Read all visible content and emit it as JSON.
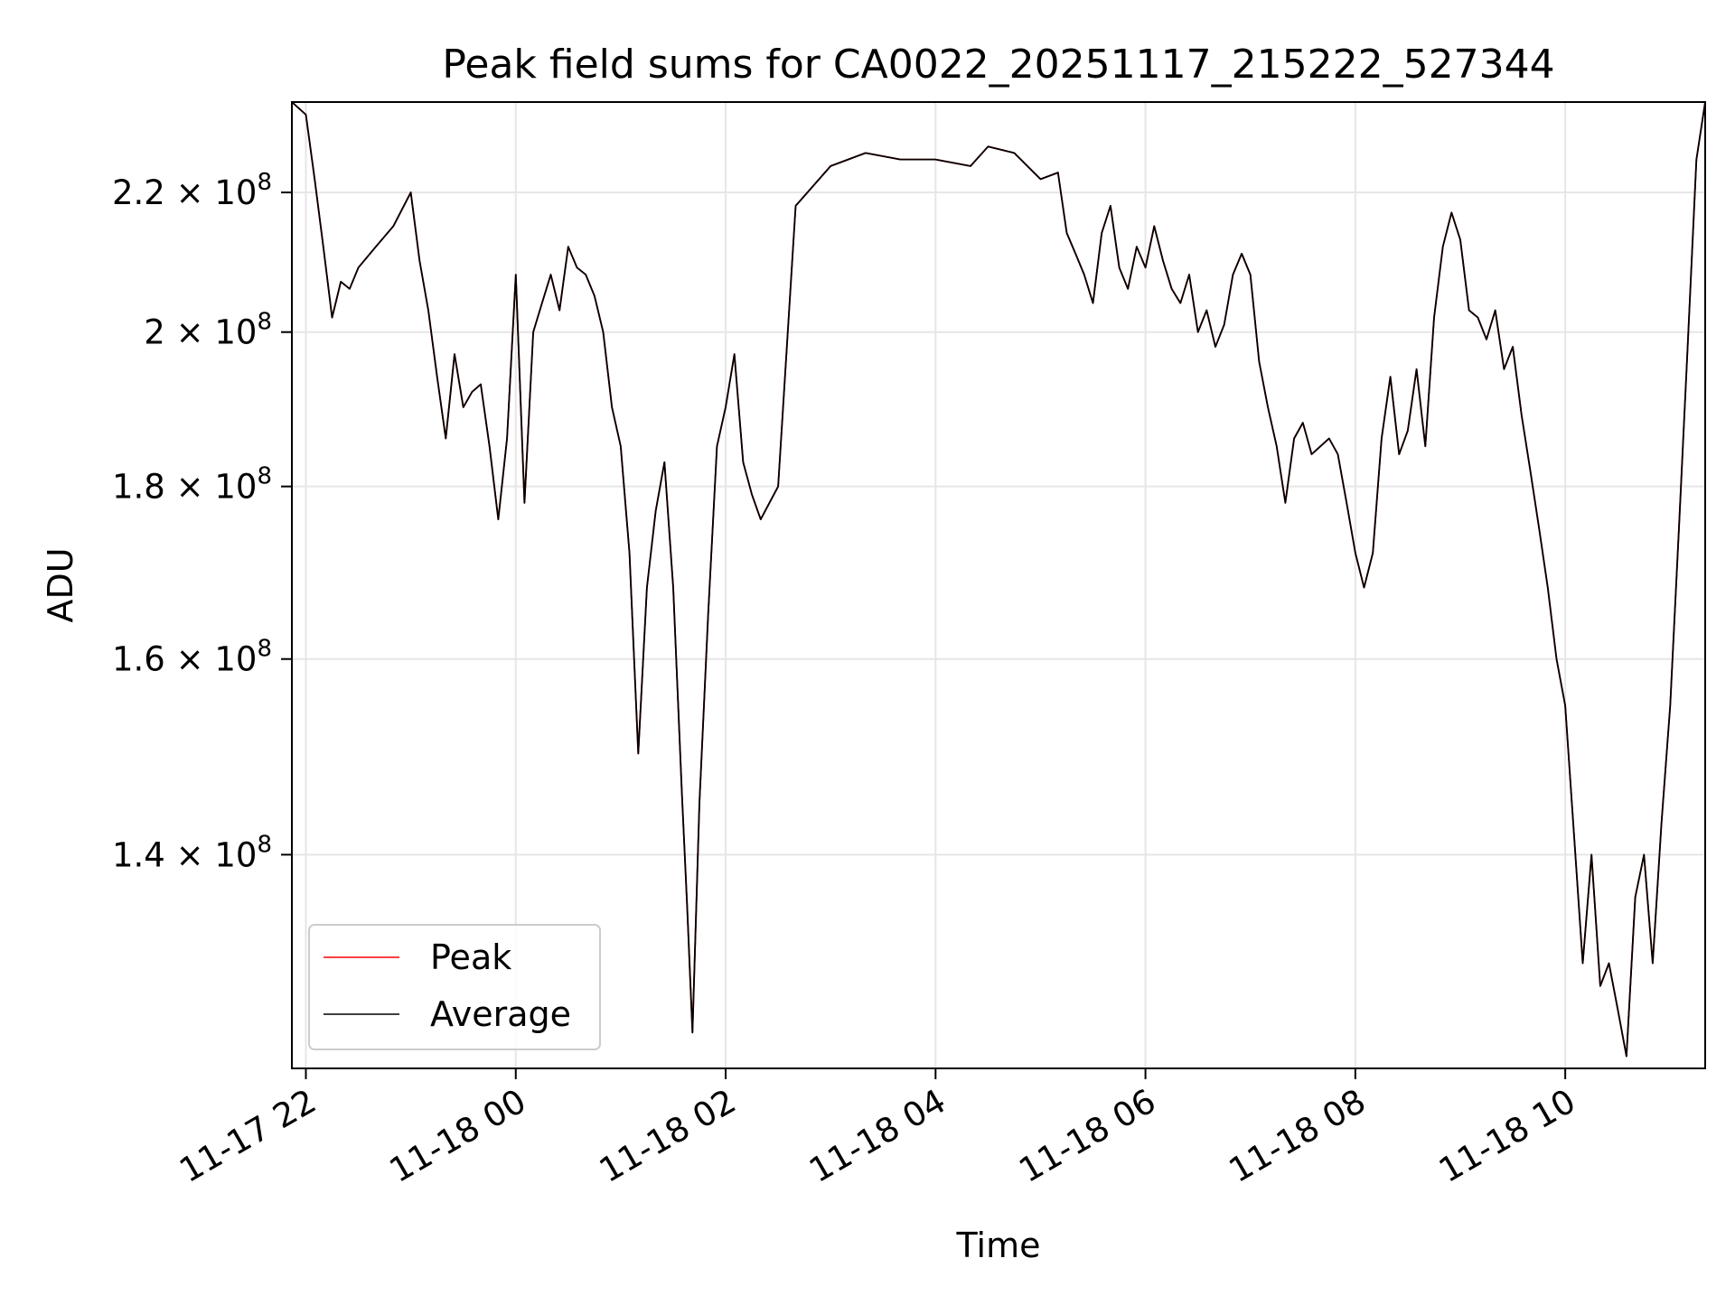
{
  "chart_data": {
    "type": "line",
    "title": "Peak field sums for CA0022_20251117_215222_527344",
    "xlabel": "Time",
    "ylabel": "ADU",
    "yscale": "log",
    "grid": true,
    "legend_position": "lower-left",
    "xlim": [
      "2025-11-17 21:52",
      "2025-11-18 11:20"
    ],
    "ylim": [
      121000000,
      234000000
    ],
    "x_ticks": [
      {
        "value": "2025-11-17 22:00",
        "label": "11-17 22"
      },
      {
        "value": "2025-11-18 00:00",
        "label": "11-18 00"
      },
      {
        "value": "2025-11-18 02:00",
        "label": "11-18 02"
      },
      {
        "value": "2025-11-18 04:00",
        "label": "11-18 04"
      },
      {
        "value": "2025-11-18 06:00",
        "label": "11-18 06"
      },
      {
        "value": "2025-11-18 08:00",
        "label": "11-18 08"
      },
      {
        "value": "2025-11-18 10:00",
        "label": "11-18 10"
      }
    ],
    "y_ticks": [
      {
        "value": 140000000,
        "mantissa": "1.4"
      },
      {
        "value": 160000000,
        "mantissa": "1.6"
      },
      {
        "value": 180000000,
        "mantissa": "1.8"
      },
      {
        "value": 200000000,
        "mantissa": "2"
      },
      {
        "value": 220000000,
        "mantissa": "2.2"
      }
    ],
    "tick_multiplier": "× 10",
    "tick_exponent": "8",
    "series": [
      {
        "name": "Peak",
        "color": "#ff0000"
      },
      {
        "name": "Average",
        "color": "#000000"
      }
    ],
    "time": [
      "2025-11-17 21:52",
      "2025-11-17 22:00",
      "2025-11-17 22:05",
      "2025-11-17 22:10",
      "2025-11-17 22:15",
      "2025-11-17 22:20",
      "2025-11-17 22:25",
      "2025-11-17 22:30",
      "2025-11-17 22:40",
      "2025-11-17 22:50",
      "2025-11-17 23:00",
      "2025-11-17 23:05",
      "2025-11-17 23:10",
      "2025-11-17 23:15",
      "2025-11-17 23:20",
      "2025-11-17 23:25",
      "2025-11-17 23:30",
      "2025-11-17 23:35",
      "2025-11-17 23:40",
      "2025-11-17 23:45",
      "2025-11-17 23:50",
      "2025-11-17 23:55",
      "2025-11-18 00:00",
      "2025-11-18 00:05",
      "2025-11-18 00:10",
      "2025-11-18 00:15",
      "2025-11-18 00:20",
      "2025-11-18 00:25",
      "2025-11-18 00:30",
      "2025-11-18 00:35",
      "2025-11-18 00:40",
      "2025-11-18 00:45",
      "2025-11-18 00:50",
      "2025-11-18 00:55",
      "2025-11-18 01:00",
      "2025-11-18 01:05",
      "2025-11-18 01:10",
      "2025-11-18 01:15",
      "2025-11-18 01:20",
      "2025-11-18 01:25",
      "2025-11-18 01:30",
      "2025-11-18 01:35",
      "2025-11-18 01:38",
      "2025-11-18 01:41",
      "2025-11-18 01:45",
      "2025-11-18 01:50",
      "2025-11-18 01:55",
      "2025-11-18 02:00",
      "2025-11-18 02:05",
      "2025-11-18 02:10",
      "2025-11-18 02:15",
      "2025-11-18 02:20",
      "2025-11-18 02:30",
      "2025-11-18 02:40",
      "2025-11-18 03:00",
      "2025-11-18 03:20",
      "2025-11-18 03:40",
      "2025-11-18 04:00",
      "2025-11-18 04:20",
      "2025-11-18 04:30",
      "2025-11-18 04:45",
      "2025-11-18 05:00",
      "2025-11-18 05:10",
      "2025-11-18 05:15",
      "2025-11-18 05:20",
      "2025-11-18 05:25",
      "2025-11-18 05:30",
      "2025-11-18 05:35",
      "2025-11-18 05:40",
      "2025-11-18 05:45",
      "2025-11-18 05:50",
      "2025-11-18 05:55",
      "2025-11-18 06:00",
      "2025-11-18 06:05",
      "2025-11-18 06:10",
      "2025-11-18 06:15",
      "2025-11-18 06:20",
      "2025-11-18 06:25",
      "2025-11-18 06:30",
      "2025-11-18 06:35",
      "2025-11-18 06:40",
      "2025-11-18 06:45",
      "2025-11-18 06:50",
      "2025-11-18 06:55",
      "2025-11-18 07:00",
      "2025-11-18 07:05",
      "2025-11-18 07:10",
      "2025-11-18 07:15",
      "2025-11-18 07:20",
      "2025-11-18 07:25",
      "2025-11-18 07:30",
      "2025-11-18 07:35",
      "2025-11-18 07:40",
      "2025-11-18 07:45",
      "2025-11-18 07:50",
      "2025-11-18 07:55",
      "2025-11-18 08:00",
      "2025-11-18 08:05",
      "2025-11-18 08:10",
      "2025-11-18 08:15",
      "2025-11-18 08:20",
      "2025-11-18 08:25",
      "2025-11-18 08:30",
      "2025-11-18 08:35",
      "2025-11-18 08:40",
      "2025-11-18 08:45",
      "2025-11-18 08:50",
      "2025-11-18 08:55",
      "2025-11-18 09:00",
      "2025-11-18 09:05",
      "2025-11-18 09:10",
      "2025-11-18 09:15",
      "2025-11-18 09:20",
      "2025-11-18 09:25",
      "2025-11-18 09:30",
      "2025-11-18 09:35",
      "2025-11-18 09:40",
      "2025-11-18 09:45",
      "2025-11-18 09:50",
      "2025-11-18 09:55",
      "2025-11-18 10:00",
      "2025-11-18 10:05",
      "2025-11-18 10:10",
      "2025-11-18 10:15",
      "2025-11-18 10:20",
      "2025-11-18 10:25",
      "2025-11-18 10:30",
      "2025-11-18 10:35",
      "2025-11-18 10:40",
      "2025-11-18 10:45",
      "2025-11-18 10:50",
      "2025-11-18 10:55",
      "2025-11-18 11:00",
      "2025-11-18 11:05",
      "2025-11-18 11:10",
      "2025-11-18 11:15",
      "2025-11-18 11:20"
    ],
    "average": [
      234000000,
      232000000,
      222000000,
      212000000,
      202000000,
      207000000,
      206000000,
      209000000,
      212000000,
      215000000,
      220000000,
      210000000,
      203000000,
      194000000,
      186000000,
      197000000,
      190000000,
      192000000,
      193000000,
      185000000,
      176000000,
      186000000,
      208000000,
      178000000,
      200000000,
      204000000,
      208000000,
      203000000,
      212000000,
      209000000,
      208000000,
      205000000,
      200000000,
      190000000,
      185000000,
      172000000,
      150000000,
      168000000,
      177000000,
      183000000,
      168000000,
      146000000,
      135000000,
      124000000,
      145000000,
      165000000,
      185000000,
      190000000,
      197000000,
      183000000,
      179000000,
      176000000,
      180000000,
      218000000,
      224000000,
      226000000,
      225000000,
      225000000,
      224000000,
      227000000,
      226000000,
      222000000,
      223000000,
      214000000,
      211000000,
      208000000,
      204000000,
      214000000,
      218000000,
      209000000,
      206000000,
      212000000,
      209000000,
      215000000,
      210000000,
      206000000,
      204000000,
      208000000,
      200000000,
      203000000,
      198000000,
      201000000,
      208000000,
      211000000,
      208000000,
      196000000,
      190000000,
      185000000,
      178000000,
      186000000,
      188000000,
      184000000,
      185000000,
      186000000,
      184000000,
      178000000,
      172000000,
      168000000,
      172000000,
      186000000,
      194000000,
      184000000,
      187000000,
      195000000,
      185000000,
      202000000,
      212000000,
      217000000,
      213000000,
      203000000,
      202000000,
      199000000,
      203000000,
      195000000,
      198000000,
      189000000,
      182000000,
      175000000,
      168000000,
      160000000,
      155000000,
      142000000,
      130000000,
      140000000,
      128000000,
      130000000,
      126000000,
      122000000,
      136000000,
      140000000,
      130000000,
      143000000,
      155000000,
      175000000,
      198000000,
      225000000,
      234000000
    ],
    "peak": [
      234000000,
      232000000,
      222000000,
      212000000,
      202000000,
      207000000,
      206000000,
      209000000,
      212000000,
      215000000,
      220000000,
      210000000,
      203000000,
      194000000,
      186000000,
      197000000,
      190000000,
      192000000,
      193000000,
      185000000,
      176000000,
      186000000,
      208000000,
      178000000,
      200000000,
      204000000,
      208000000,
      203000000,
      212000000,
      209000000,
      208000000,
      205000000,
      200000000,
      190000000,
      185000000,
      172000000,
      150000000,
      168000000,
      177000000,
      183000000,
      168000000,
      146000000,
      135000000,
      124000000,
      145000000,
      165000000,
      185000000,
      190000000,
      197000000,
      183000000,
      179000000,
      176000000,
      180000000,
      218000000,
      224000000,
      226000000,
      225000000,
      225000000,
      224000000,
      227000000,
      226000000,
      222000000,
      223000000,
      214000000,
      211000000,
      208000000,
      204000000,
      214000000,
      218000000,
      209000000,
      206000000,
      212000000,
      209000000,
      215000000,
      210000000,
      206000000,
      204000000,
      208000000,
      200000000,
      203000000,
      198000000,
      201000000,
      208000000,
      211000000,
      208000000,
      196000000,
      190000000,
      185000000,
      178000000,
      186000000,
      188000000,
      184000000,
      185000000,
      186000000,
      184000000,
      178000000,
      172000000,
      168000000,
      172000000,
      186000000,
      194000000,
      184000000,
      187000000,
      195000000,
      185000000,
      202000000,
      212000000,
      217000000,
      213000000,
      203000000,
      202000000,
      199000000,
      203000000,
      195000000,
      198000000,
      189000000,
      182000000,
      175000000,
      168000000,
      160000000,
      155000000,
      142000000,
      130000000,
      140000000,
      128000000,
      130000000,
      126000000,
      122000000,
      136000000,
      140000000,
      130000000,
      143000000,
      155000000,
      175000000,
      198000000,
      225000000,
      234000000
    ]
  }
}
